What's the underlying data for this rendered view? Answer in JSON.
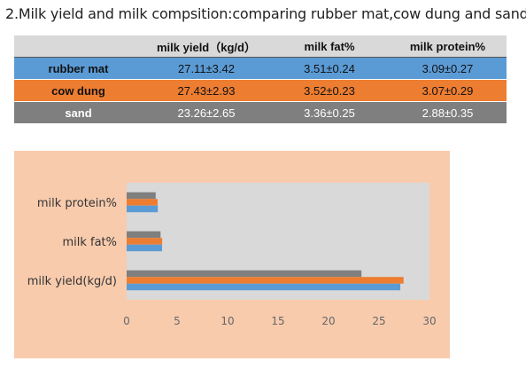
{
  "page_title": "2.Milk yield and milk compsition:comparing rubber mat,cow dung and sand",
  "table": {
    "headers": [
      "",
      "milk yield（kg/d）",
      "milk fat%",
      "milk protein%"
    ],
    "header_bg": "#d9d9d9",
    "rows": [
      {
        "label": "rubber mat",
        "values": [
          "27.11±3.42",
          "3.51±0.24",
          "3.09±0.27"
        ],
        "bg": "#5b9bd5",
        "color": "#111111"
      },
      {
        "label": "cow dung",
        "values": [
          "27.43±2.93",
          "3.52±0.23",
          "3.07±0.29"
        ],
        "bg": "#ed7d31",
        "color": "#111111"
      },
      {
        "label": "sand",
        "values": [
          "23.26±2.65",
          "3.36±0.25",
          "2.88±0.35"
        ],
        "bg": "#7f7f7f",
        "color": "#ffffff"
      }
    ]
  },
  "chart_data": {
    "type": "bar",
    "orientation": "horizontal",
    "categories": [
      "milk yield(kg/d)",
      "milk fat%",
      "milk protein%"
    ],
    "series": [
      {
        "name": "rubber mat",
        "values": [
          27.11,
          3.51,
          3.09
        ],
        "color": "#5b9bd5"
      },
      {
        "name": "cow dung",
        "values": [
          27.43,
          3.52,
          3.07
        ],
        "color": "#ed7d31"
      },
      {
        "name": "sand",
        "values": [
          23.26,
          3.36,
          2.88
        ],
        "color": "#7f7f7f"
      }
    ],
    "xlim": [
      0,
      30
    ],
    "xticks": [
      0,
      5,
      10,
      15,
      20,
      25,
      30
    ],
    "grid": false,
    "legend": "none",
    "plot_background": "#d9d9d9",
    "chart_background": "#f8cbad"
  }
}
